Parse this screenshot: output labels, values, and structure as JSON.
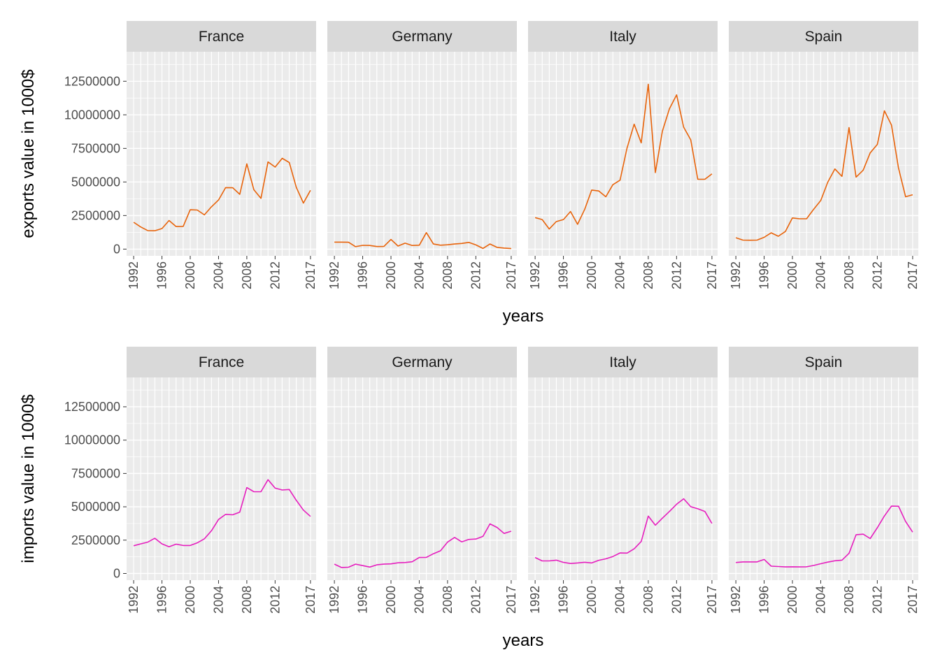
{
  "chart_data": [
    {
      "type": "line",
      "xlabel": "years",
      "ylabel": "exports value in 1000$",
      "x_ticks": [
        "1992",
        "1996",
        "2000",
        "2004",
        "2008",
        "2012",
        "2017"
      ],
      "y_ticks": [
        "0",
        "2500000",
        "5000000",
        "7500000",
        "10000000",
        "12500000"
      ],
      "ylim": [
        -500000,
        14700000
      ],
      "xlim": [
        1991.0,
        2017.8
      ],
      "grid": true,
      "line_color": "#E8630A",
      "x": [
        1992,
        1993,
        1994,
        1995,
        1996,
        1997,
        1998,
        1999,
        2000,
        2001,
        2002,
        2003,
        2004,
        2005,
        2006,
        2007,
        2008,
        2009,
        2010,
        2011,
        2012,
        2013,
        2014,
        2015,
        2016,
        2017
      ],
      "series": [
        {
          "facet": "France",
          "values": [
            2000000,
            1650000,
            1380000,
            1370000,
            1530000,
            2130000,
            1680000,
            1690000,
            2930000,
            2910000,
            2550000,
            3150000,
            3660000,
            4580000,
            4570000,
            4080000,
            6350000,
            4420000,
            3780000,
            6490000,
            6110000,
            6760000,
            6450000,
            4590000,
            3430000,
            4380000
          ]
        },
        {
          "facet": "Germany",
          "values": [
            520000,
            520000,
            510000,
            180000,
            280000,
            270000,
            190000,
            200000,
            720000,
            230000,
            440000,
            270000,
            290000,
            1230000,
            380000,
            290000,
            320000,
            380000,
            420000,
            500000,
            310000,
            50000,
            380000,
            130000,
            80000,
            40000
          ]
        },
        {
          "facet": "Italy",
          "values": [
            2350000,
            2200000,
            1500000,
            2050000,
            2200000,
            2800000,
            1850000,
            2950000,
            4400000,
            4330000,
            3900000,
            4800000,
            5130000,
            7540000,
            9300000,
            7910000,
            12280000,
            5700000,
            8790000,
            10460000,
            11490000,
            9080000,
            8140000,
            5200000,
            5200000,
            5600000
          ]
        },
        {
          "facet": "Spain",
          "values": [
            850000,
            670000,
            660000,
            670000,
            880000,
            1210000,
            960000,
            1310000,
            2320000,
            2260000,
            2260000,
            2960000,
            3620000,
            4990000,
            5970000,
            5420000,
            9050000,
            5360000,
            5870000,
            7170000,
            7800000,
            10300000,
            9240000,
            6030000,
            3900000,
            4050000
          ]
        }
      ]
    },
    {
      "type": "line",
      "xlabel": "years",
      "ylabel": "imports value in 1000$",
      "x_ticks": [
        "1992",
        "1996",
        "2000",
        "2004",
        "2008",
        "2012",
        "2017"
      ],
      "y_ticks": [
        "0",
        "2500000",
        "5000000",
        "7500000",
        "10000000",
        "12500000"
      ],
      "ylim": [
        -500000,
        14700000
      ],
      "xlim": [
        1991.0,
        2017.8
      ],
      "grid": true,
      "line_color": "#E61EBE",
      "x": [
        1992,
        1993,
        1994,
        1995,
        1996,
        1997,
        1998,
        1999,
        2000,
        2001,
        2002,
        2003,
        2004,
        2005,
        2006,
        2007,
        2008,
        2009,
        2010,
        2011,
        2012,
        2013,
        2014,
        2015,
        2016,
        2017
      ],
      "series": [
        {
          "facet": "France",
          "values": [
            2080000,
            2220000,
            2350000,
            2640000,
            2220000,
            2000000,
            2200000,
            2100000,
            2100000,
            2300000,
            2600000,
            3200000,
            4050000,
            4430000,
            4400000,
            4600000,
            6440000,
            6130000,
            6130000,
            7030000,
            6400000,
            6260000,
            6300000,
            5480000,
            4750000,
            4280000
          ]
        },
        {
          "facet": "Germany",
          "values": [
            700000,
            450000,
            470000,
            700000,
            590000,
            480000,
            650000,
            700000,
            720000,
            800000,
            820000,
            880000,
            1200000,
            1210000,
            1480000,
            1700000,
            2350000,
            2700000,
            2370000,
            2550000,
            2580000,
            2780000,
            3720000,
            3450000,
            3000000,
            3170000
          ]
        },
        {
          "facet": "Italy",
          "values": [
            1200000,
            940000,
            940000,
            1000000,
            830000,
            750000,
            790000,
            840000,
            790000,
            990000,
            1100000,
            1270000,
            1540000,
            1530000,
            1850000,
            2400000,
            4300000,
            3620000,
            4150000,
            4650000,
            5190000,
            5600000,
            5010000,
            4850000,
            4650000,
            3750000
          ]
        },
        {
          "facet": "Spain",
          "values": [
            820000,
            870000,
            870000,
            870000,
            1050000,
            550000,
            520000,
            490000,
            500000,
            490000,
            500000,
            600000,
            730000,
            850000,
            950000,
            1000000,
            1510000,
            2900000,
            2950000,
            2620000,
            3430000,
            4310000,
            5050000,
            5040000,
            3900000,
            3100000
          ]
        }
      ]
    }
  ]
}
